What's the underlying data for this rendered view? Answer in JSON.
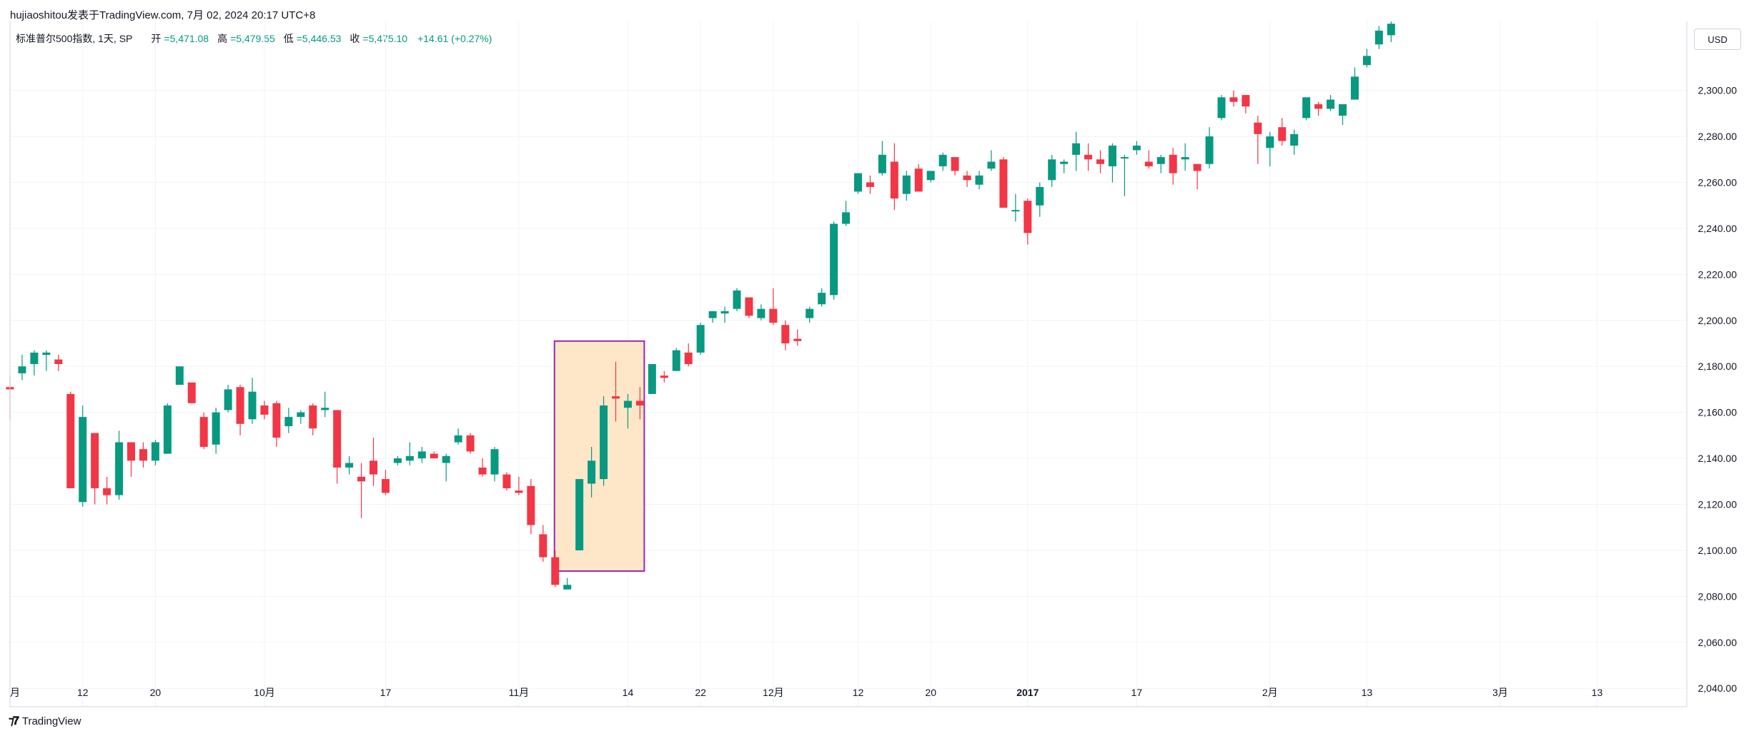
{
  "header": {
    "publish_line": "hujiaoshitou发表于TradingView.com, 7月 02, 2024 20:17 UTC+8"
  },
  "legend": {
    "symbol": "标准普尔500指数, 1天, SP",
    "open_label": "开",
    "open": "=5,471.08",
    "high_label": "高",
    "high": "=5,479.55",
    "low_label": "低",
    "low": "=5,446.53",
    "close_label": "收",
    "close": "=5,475.10",
    "change": "+14.61 (+0.27%)"
  },
  "currency_button": "USD",
  "branding": "TradingView",
  "colors": {
    "up": "#089981",
    "down": "#f23645",
    "highlight_fill": "#fde7c8",
    "highlight_border": "#9c27b0",
    "grid": "#f0f3fa"
  },
  "chart_data": {
    "type": "candlestick",
    "y_ticks": [
      "2,300.00",
      "2,280.00",
      "2,260.00",
      "2,240.00",
      "2,220.00",
      "2,200.00",
      "2,180.00",
      "2,160.00",
      "2,140.00",
      "2,120.00",
      "2,100.00",
      "2,080.00",
      "2,060.00",
      "2,040.00"
    ],
    "y_tick_values": [
      2300,
      2280,
      2260,
      2240,
      2220,
      2200,
      2180,
      2160,
      2140,
      2120,
      2100,
      2080,
      2060,
      2040
    ],
    "ylim": [
      2032,
      2330
    ],
    "x_labels": [
      {
        "text": "月",
        "index": 0
      },
      {
        "text": "12",
        "index": 6
      },
      {
        "text": "20",
        "index": 12
      },
      {
        "text": "10月",
        "index": 21
      },
      {
        "text": "17",
        "index": 31
      },
      {
        "text": "11月",
        "index": 42
      },
      {
        "text": "14",
        "index": 51
      },
      {
        "text": "22",
        "index": 57
      },
      {
        "text": "12月",
        "index": 63
      },
      {
        "text": "12",
        "index": 70
      },
      {
        "text": "20",
        "index": 76
      },
      {
        "text": "2017",
        "index": 84,
        "bold": true
      },
      {
        "text": "17",
        "index": 93
      },
      {
        "text": "2月",
        "index": 104
      },
      {
        "text": "13",
        "index": 112
      },
      {
        "text": "3月",
        "index": 123
      },
      {
        "text": "13",
        "index": 131
      }
    ],
    "highlight": {
      "from_index": 45,
      "to_index": 52,
      "y_top": 2191,
      "y_bottom": 2091
    },
    "candles": [
      {
        "o": 2171,
        "h": 2176,
        "l": 2157,
        "c": 2170
      },
      {
        "o": 2177,
        "h": 2185,
        "l": 2174,
        "c": 2180
      },
      {
        "o": 2181,
        "h": 2187,
        "l": 2176,
        "c": 2186
      },
      {
        "o": 2185,
        "h": 2187,
        "l": 2178,
        "c": 2186
      },
      {
        "o": 2183,
        "h": 2185,
        "l": 2178,
        "c": 2181
      },
      {
        "o": 2168,
        "h": 2169,
        "l": 2127,
        "c": 2127
      },
      {
        "o": 2121,
        "h": 2163,
        "l": 2119,
        "c": 2158
      },
      {
        "o": 2151,
        "h": 2151,
        "l": 2120,
        "c": 2127
      },
      {
        "o": 2127,
        "h": 2132,
        "l": 2120,
        "c": 2124
      },
      {
        "o": 2124,
        "h": 2152,
        "l": 2122,
        "c": 2147
      },
      {
        "o": 2147,
        "h": 2147,
        "l": 2132,
        "c": 2139
      },
      {
        "o": 2144,
        "h": 2147,
        "l": 2136,
        "c": 2139
      },
      {
        "o": 2139,
        "h": 2148,
        "l": 2137,
        "c": 2147
      },
      {
        "o": 2142,
        "h": 2164,
        "l": 2142,
        "c": 2163
      },
      {
        "o": 2172,
        "h": 2179,
        "l": 2172,
        "c": 2180
      },
      {
        "o": 2173,
        "h": 2173,
        "l": 2164,
        "c": 2164
      },
      {
        "o": 2158,
        "h": 2160,
        "l": 2144,
        "c": 2145
      },
      {
        "o": 2146,
        "h": 2162,
        "l": 2142,
        "c": 2160
      },
      {
        "o": 2161,
        "h": 2172,
        "l": 2160,
        "c": 2170
      },
      {
        "o": 2171,
        "h": 2172,
        "l": 2150,
        "c": 2155
      },
      {
        "o": 2157,
        "h": 2175,
        "l": 2155,
        "c": 2169
      },
      {
        "o": 2163,
        "h": 2165,
        "l": 2157,
        "c": 2159
      },
      {
        "o": 2164,
        "h": 2165,
        "l": 2145,
        "c": 2149
      },
      {
        "o": 2154,
        "h": 2162,
        "l": 2151,
        "c": 2158
      },
      {
        "o": 2158,
        "h": 2161,
        "l": 2155,
        "c": 2160
      },
      {
        "o": 2163,
        "h": 2164,
        "l": 2150,
        "c": 2153
      },
      {
        "o": 2161,
        "h": 2169,
        "l": 2158,
        "c": 2162
      },
      {
        "o": 2161,
        "h": 2161,
        "l": 2129,
        "c": 2136
      },
      {
        "o": 2136,
        "h": 2141,
        "l": 2133,
        "c": 2138
      },
      {
        "o": 2132,
        "h": 2138,
        "l": 2114,
        "c": 2130
      },
      {
        "o": 2139,
        "h": 2149,
        "l": 2128,
        "c": 2133
      },
      {
        "o": 2131,
        "h": 2135,
        "l": 2124,
        "c": 2125
      },
      {
        "o": 2138,
        "h": 2141,
        "l": 2137,
        "c": 2140
      },
      {
        "o": 2139,
        "h": 2147,
        "l": 2137,
        "c": 2141
      },
      {
        "o": 2140,
        "h": 2145,
        "l": 2138,
        "c": 2143
      },
      {
        "o": 2142,
        "h": 2143,
        "l": 2140,
        "c": 2140
      },
      {
        "o": 2138,
        "h": 2142,
        "l": 2130,
        "c": 2141
      },
      {
        "o": 2147,
        "h": 2153,
        "l": 2146,
        "c": 2150
      },
      {
        "o": 2150,
        "h": 2151,
        "l": 2142,
        "c": 2143
      },
      {
        "o": 2136,
        "h": 2140,
        "l": 2132,
        "c": 2133
      },
      {
        "o": 2133,
        "h": 2145,
        "l": 2130,
        "c": 2144
      },
      {
        "o": 2133,
        "h": 2134,
        "l": 2126,
        "c": 2127
      },
      {
        "o": 2126,
        "h": 2132,
        "l": 2124,
        "c": 2125
      },
      {
        "o": 2128,
        "h": 2131,
        "l": 2107,
        "c": 2111
      },
      {
        "o": 2107,
        "h": 2111,
        "l": 2095,
        "c": 2097
      },
      {
        "o": 2097,
        "h": 2100,
        "l": 2084,
        "c": 2085
      },
      {
        "o": 2083,
        "h": 2088,
        "l": 2083,
        "c": 2085
      },
      {
        "o": 2100,
        "h": 2131,
        "l": 2100,
        "c": 2131
      },
      {
        "o": 2129,
        "h": 2145,
        "l": 2123,
        "c": 2139
      },
      {
        "o": 2131,
        "h": 2167,
        "l": 2128,
        "c": 2163
      },
      {
        "o": 2167,
        "h": 2182,
        "l": 2156,
        "c": 2166
      },
      {
        "o": 2162,
        "h": 2168,
        "l": 2153,
        "c": 2165
      },
      {
        "o": 2165,
        "h": 2171,
        "l": 2157,
        "c": 2163
      },
      {
        "o": 2168,
        "h": 2180,
        "l": 2168,
        "c": 2181
      },
      {
        "o": 2176,
        "h": 2178,
        "l": 2173,
        "c": 2175
      },
      {
        "o": 2178,
        "h": 2188,
        "l": 2178,
        "c": 2187
      },
      {
        "o": 2186,
        "h": 2190,
        "l": 2180,
        "c": 2181
      },
      {
        "o": 2186,
        "h": 2199,
        "l": 2185,
        "c": 2198
      },
      {
        "o": 2201,
        "h": 2204,
        "l": 2199,
        "c": 2204
      },
      {
        "o": 2203,
        "h": 2206,
        "l": 2199,
        "c": 2204
      },
      {
        "o": 2205,
        "h": 2214,
        "l": 2204,
        "c": 2213
      },
      {
        "o": 2210,
        "h": 2210,
        "l": 2201,
        "c": 2202
      },
      {
        "o": 2201,
        "h": 2207,
        "l": 2200,
        "c": 2205
      },
      {
        "o": 2205,
        "h": 2214,
        "l": 2198,
        "c": 2199
      },
      {
        "o": 2198,
        "h": 2200,
        "l": 2187,
        "c": 2190
      },
      {
        "o": 2192,
        "h": 2196,
        "l": 2189,
        "c": 2191
      },
      {
        "o": 2201,
        "h": 2206,
        "l": 2199,
        "c": 2205
      },
      {
        "o": 2207,
        "h": 2214,
        "l": 2206,
        "c": 2212
      },
      {
        "o": 2211,
        "h": 2243,
        "l": 2209,
        "c": 2242
      },
      {
        "o": 2242,
        "h": 2252,
        "l": 2241,
        "c": 2247
      },
      {
        "o": 2256,
        "h": 2264,
        "l": 2255,
        "c": 2264
      },
      {
        "o": 2260,
        "h": 2263,
        "l": 2255,
        "c": 2258
      },
      {
        "o": 2264,
        "h": 2278,
        "l": 2263,
        "c": 2272
      },
      {
        "o": 2269,
        "h": 2277,
        "l": 2248,
        "c": 2253
      },
      {
        "o": 2255,
        "h": 2265,
        "l": 2252,
        "c": 2263
      },
      {
        "o": 2266,
        "h": 2268,
        "l": 2257,
        "c": 2256
      },
      {
        "o": 2261,
        "h": 2265,
        "l": 2260,
        "c": 2265
      },
      {
        "o": 2267,
        "h": 2273,
        "l": 2265,
        "c": 2272
      },
      {
        "o": 2271,
        "h": 2271,
        "l": 2263,
        "c": 2265
      },
      {
        "o": 2263,
        "h": 2265,
        "l": 2258,
        "c": 2261
      },
      {
        "o": 2259,
        "h": 2265,
        "l": 2257,
        "c": 2263
      },
      {
        "o": 2266,
        "h": 2274,
        "l": 2265,
        "c": 2269
      },
      {
        "o": 2270,
        "h": 2271,
        "l": 2249,
        "c": 2249
      },
      {
        "o": 2248,
        "h": 2255,
        "l": 2243,
        "c": 2248
      },
      {
        "o": 2252,
        "h": 2253,
        "l": 2233,
        "c": 2238
      },
      {
        "o": 2250,
        "h": 2260,
        "l": 2245,
        "c": 2258
      },
      {
        "o": 2261,
        "h": 2272,
        "l": 2258,
        "c": 2270
      },
      {
        "o": 2268,
        "h": 2270,
        "l": 2264,
        "c": 2269
      },
      {
        "o": 2272,
        "h": 2282,
        "l": 2265,
        "c": 2277
      },
      {
        "o": 2272,
        "h": 2277,
        "l": 2265,
        "c": 2270
      },
      {
        "o": 2270,
        "h": 2274,
        "l": 2264,
        "c": 2268
      },
      {
        "o": 2267,
        "h": 2277,
        "l": 2260,
        "c": 2276
      },
      {
        "o": 2271,
        "h": 2272,
        "l": 2254,
        "c": 2271
      },
      {
        "o": 2274,
        "h": 2278,
        "l": 2272,
        "c": 2276
      },
      {
        "o": 2269,
        "h": 2274,
        "l": 2266,
        "c": 2267
      },
      {
        "o": 2268,
        "h": 2272,
        "l": 2264,
        "c": 2271
      },
      {
        "o": 2272,
        "h": 2275,
        "l": 2259,
        "c": 2264
      },
      {
        "o": 2270,
        "h": 2277,
        "l": 2265,
        "c": 2271
      },
      {
        "o": 2268,
        "h": 2268,
        "l": 2257,
        "c": 2265
      },
      {
        "o": 2268,
        "h": 2284,
        "l": 2266,
        "c": 2280
      },
      {
        "o": 2288,
        "h": 2298,
        "l": 2287,
        "c": 2297
      },
      {
        "o": 2297,
        "h": 2300,
        "l": 2293,
        "c": 2295
      },
      {
        "o": 2298,
        "h": 2298,
        "l": 2290,
        "c": 2293
      },
      {
        "o": 2286,
        "h": 2289,
        "l": 2268,
        "c": 2281
      },
      {
        "o": 2275,
        "h": 2282,
        "l": 2267,
        "c": 2280
      },
      {
        "o": 2284,
        "h": 2288,
        "l": 2276,
        "c": 2278
      },
      {
        "o": 2276,
        "h": 2283,
        "l": 2272,
        "c": 2281
      },
      {
        "o": 2288,
        "h": 2296,
        "l": 2287,
        "c": 2297
      },
      {
        "o": 2294,
        "h": 2295,
        "l": 2289,
        "c": 2292
      },
      {
        "o": 2292,
        "h": 2298,
        "l": 2291,
        "c": 2296
      },
      {
        "o": 2289,
        "h": 2292,
        "l": 2285,
        "c": 2294
      },
      {
        "o": 2296,
        "h": 2310,
        "l": 2296,
        "c": 2306
      },
      {
        "o": 2311,
        "h": 2318,
        "l": 2310,
        "c": 2315
      },
      {
        "o": 2320,
        "h": 2328,
        "l": 2318,
        "c": 2326
      },
      {
        "o": 2324,
        "h": 2330,
        "l": 2321,
        "c": 2329
      }
    ]
  }
}
